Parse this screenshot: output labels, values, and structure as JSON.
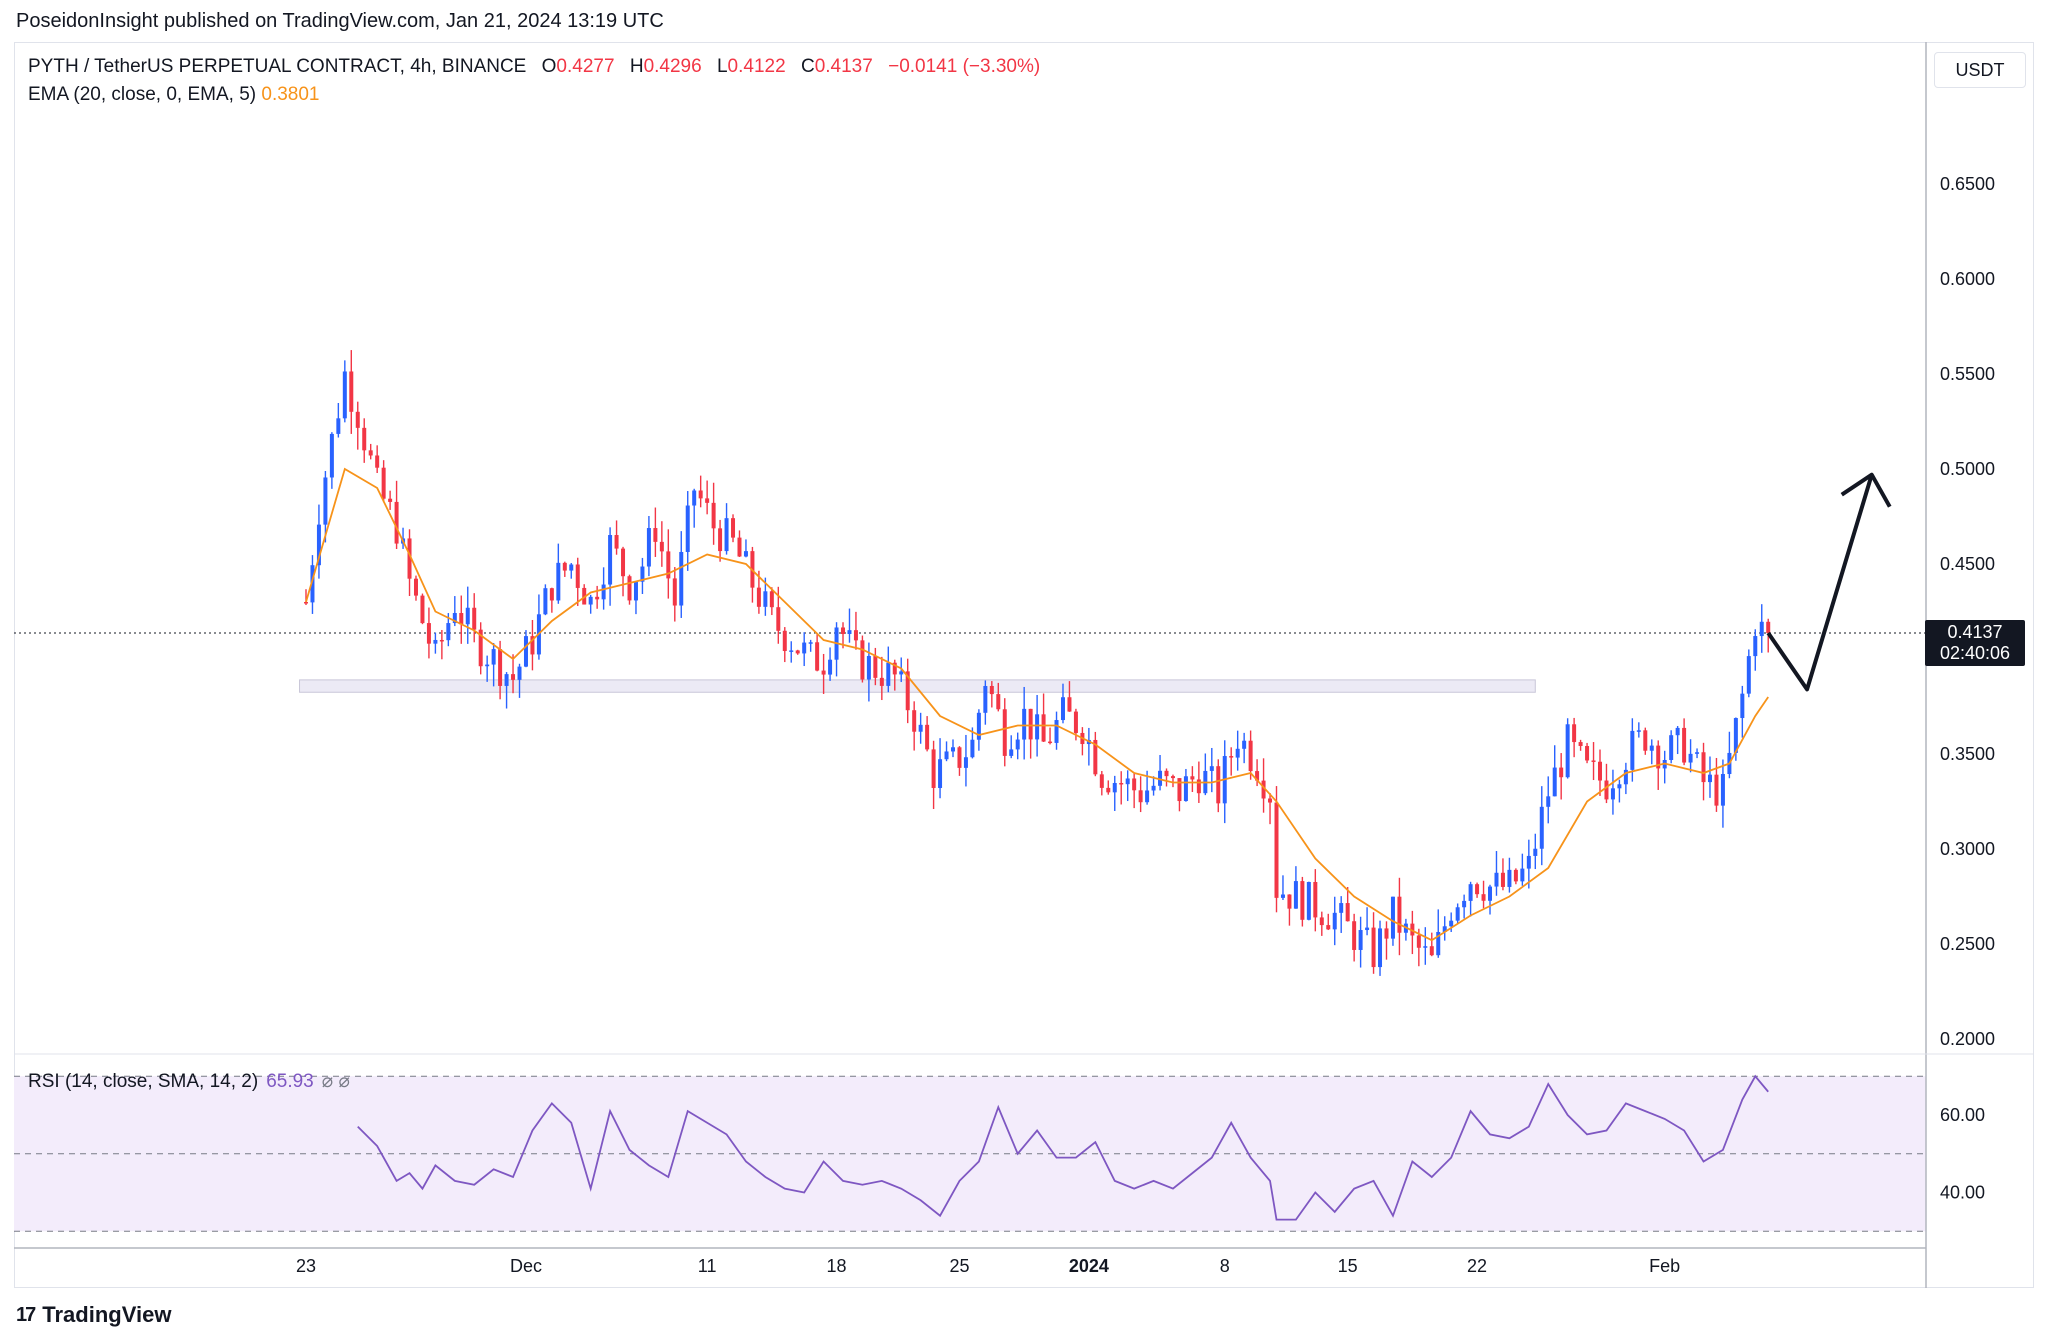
{
  "publisher": "PoseidonInsight published on TradingView.com, Jan 21, 2024 13:19 UTC",
  "header": {
    "symbol": "PYTH / TetherUS PERPETUAL CONTRACT, 4h, BINANCE",
    "open_label": "O",
    "open": "0.4277",
    "high_label": "H",
    "high": "0.4296",
    "low_label": "L",
    "low": "0.4122",
    "close_label": "C",
    "close": "0.4137",
    "change": "−0.0141 (−3.30%)",
    "ema_label": "EMA (20, close, 0, EMA, 5)",
    "ema_value": "0.3801"
  },
  "rsi": {
    "label": "RSI (14, close, SMA, 14, 2)",
    "value": "65.93",
    "icons": "⌀ ⌀"
  },
  "currency": "USDT",
  "price_badge": {
    "price": "0.4137",
    "countdown": "02:40:06"
  },
  "logo": {
    "mark": "17",
    "text": "TradingView"
  },
  "colors": {
    "up": "#2962ff",
    "down": "#f23645",
    "ema": "#f7931a",
    "rsi": "#7e57c2",
    "rsi_band": "#f3ecfb"
  },
  "chart_data": {
    "type": "candlestick",
    "timeframe": "4h",
    "ylim": [
      0.19,
      0.7
    ],
    "y_ticks": [
      "0.6500",
      "0.6000",
      "0.5500",
      "0.5000",
      "0.4500",
      "0.3500",
      "0.3000",
      "0.2500",
      "0.2000"
    ],
    "x_ticks": [
      "23",
      "Dec",
      "11",
      "18",
      "25",
      "2024",
      "8",
      "15",
      "22",
      "Feb"
    ],
    "last_price": 0.4137,
    "price_path": [
      [
        0,
        0.43
      ],
      [
        2,
        0.48
      ],
      [
        6,
        0.55
      ],
      [
        8,
        0.53
      ],
      [
        11,
        0.49
      ],
      [
        14,
        0.47
      ],
      [
        16,
        0.44
      ],
      [
        18,
        0.42
      ],
      [
        20,
        0.4
      ],
      [
        23,
        0.43
      ],
      [
        26,
        0.41
      ],
      [
        29,
        0.4
      ],
      [
        32,
        0.39
      ],
      [
        35,
        0.41
      ],
      [
        38,
        0.44
      ],
      [
        41,
        0.45
      ],
      [
        44,
        0.43
      ],
      [
        47,
        0.46
      ],
      [
        50,
        0.44
      ],
      [
        52,
        0.45
      ],
      [
        54,
        0.47
      ],
      [
        57,
        0.43
      ],
      [
        60,
        0.49
      ],
      [
        63,
        0.47
      ],
      [
        66,
        0.46
      ],
      [
        69,
        0.44
      ],
      [
        72,
        0.42
      ],
      [
        75,
        0.41
      ],
      [
        78,
        0.4
      ],
      [
        80,
        0.4
      ],
      [
        82,
        0.42
      ],
      [
        85,
        0.4
      ],
      [
        88,
        0.395
      ],
      [
        91,
        0.39
      ],
      [
        94,
        0.37
      ],
      [
        97,
        0.34
      ],
      [
        100,
        0.345
      ],
      [
        103,
        0.355
      ],
      [
        105,
        0.39
      ],
      [
        108,
        0.36
      ],
      [
        111,
        0.37
      ],
      [
        114,
        0.355
      ],
      [
        117,
        0.37
      ],
      [
        120,
        0.365
      ],
      [
        123,
        0.34
      ],
      [
        126,
        0.335
      ],
      [
        129,
        0.33
      ],
      [
        132,
        0.335
      ],
      [
        135,
        0.33
      ],
      [
        138,
        0.34
      ],
      [
        141,
        0.33
      ],
      [
        144,
        0.36
      ],
      [
        147,
        0.345
      ],
      [
        149,
        0.33
      ],
      [
        150,
        0.28
      ],
      [
        153,
        0.275
      ],
      [
        156,
        0.27
      ],
      [
        159,
        0.265
      ],
      [
        162,
        0.255
      ],
      [
        165,
        0.245
      ],
      [
        168,
        0.265
      ],
      [
        171,
        0.25
      ],
      [
        174,
        0.24
      ],
      [
        177,
        0.27
      ],
      [
        180,
        0.285
      ],
      [
        183,
        0.28
      ],
      [
        186,
        0.28
      ],
      [
        189,
        0.29
      ],
      [
        192,
        0.33
      ],
      [
        195,
        0.355
      ],
      [
        198,
        0.34
      ],
      [
        201,
        0.335
      ],
      [
        204,
        0.35
      ],
      [
        207,
        0.36
      ],
      [
        210,
        0.35
      ],
      [
        213,
        0.355
      ],
      [
        216,
        0.335
      ],
      [
        219,
        0.33
      ],
      [
        222,
        0.38
      ],
      [
        224,
        0.42
      ],
      [
        226,
        0.41
      ]
    ],
    "ema_path": [
      [
        0,
        0.43
      ],
      [
        6,
        0.5
      ],
      [
        11,
        0.49
      ],
      [
        16,
        0.455
      ],
      [
        20,
        0.425
      ],
      [
        26,
        0.415
      ],
      [
        32,
        0.4
      ],
      [
        38,
        0.42
      ],
      [
        44,
        0.435
      ],
      [
        50,
        0.44
      ],
      [
        56,
        0.445
      ],
      [
        62,
        0.455
      ],
      [
        68,
        0.45
      ],
      [
        74,
        0.43
      ],
      [
        80,
        0.41
      ],
      [
        86,
        0.405
      ],
      [
        92,
        0.395
      ],
      [
        98,
        0.37
      ],
      [
        104,
        0.36
      ],
      [
        110,
        0.365
      ],
      [
        116,
        0.365
      ],
      [
        122,
        0.355
      ],
      [
        128,
        0.34
      ],
      [
        134,
        0.335
      ],
      [
        140,
        0.335
      ],
      [
        146,
        0.34
      ],
      [
        150,
        0.325
      ],
      [
        156,
        0.295
      ],
      [
        162,
        0.275
      ],
      [
        168,
        0.262
      ],
      [
        174,
        0.252
      ],
      [
        180,
        0.265
      ],
      [
        186,
        0.275
      ],
      [
        192,
        0.29
      ],
      [
        198,
        0.325
      ],
      [
        204,
        0.34
      ],
      [
        210,
        0.345
      ],
      [
        216,
        0.34
      ],
      [
        220,
        0.345
      ],
      [
        224,
        0.37
      ],
      [
        226,
        0.38
      ]
    ],
    "support_zone": [
      0.3825,
      0.389
    ],
    "projection_arrow": [
      [
        226,
        0.4137
      ],
      [
        232,
        0.384
      ],
      [
        242,
        0.497
      ]
    ],
    "rsi": {
      "ylim": [
        25,
        85
      ],
      "band": [
        30,
        70
      ],
      "mid": 50,
      "y_ticks": [
        "60.00",
        "40.00"
      ],
      "path": [
        [
          8,
          57
        ],
        [
          11,
          52
        ],
        [
          14,
          43
        ],
        [
          16,
          45
        ],
        [
          18,
          41
        ],
        [
          20,
          47
        ],
        [
          23,
          43
        ],
        [
          26,
          42
        ],
        [
          29,
          46
        ],
        [
          32,
          44
        ],
        [
          35,
          56
        ],
        [
          38,
          63
        ],
        [
          41,
          58
        ],
        [
          44,
          41
        ],
        [
          47,
          61
        ],
        [
          50,
          51
        ],
        [
          53,
          47
        ],
        [
          56,
          44
        ],
        [
          59,
          61
        ],
        [
          62,
          58
        ],
        [
          65,
          55
        ],
        [
          68,
          48
        ],
        [
          71,
          44
        ],
        [
          74,
          41
        ],
        [
          77,
          40
        ],
        [
          80,
          48
        ],
        [
          83,
          43
        ],
        [
          86,
          42
        ],
        [
          89,
          43
        ],
        [
          92,
          41
        ],
        [
          95,
          38
        ],
        [
          98,
          34
        ],
        [
          101,
          43
        ],
        [
          104,
          48
        ],
        [
          107,
          62
        ],
        [
          110,
          50
        ],
        [
          113,
          56
        ],
        [
          116,
          49
        ],
        [
          119,
          49
        ],
        [
          122,
          53
        ],
        [
          125,
          43
        ],
        [
          128,
          41
        ],
        [
          131,
          43
        ],
        [
          134,
          41
        ],
        [
          137,
          45
        ],
        [
          140,
          49
        ],
        [
          143,
          58
        ],
        [
          146,
          49
        ],
        [
          149,
          43
        ],
        [
          150,
          33
        ],
        [
          153,
          33
        ],
        [
          156,
          40
        ],
        [
          159,
          35
        ],
        [
          162,
          41
        ],
        [
          165,
          43
        ],
        [
          168,
          34
        ],
        [
          171,
          48
        ],
        [
          174,
          44
        ],
        [
          177,
          49
        ],
        [
          180,
          61
        ],
        [
          183,
          55
        ],
        [
          186,
          54
        ],
        [
          189,
          57
        ],
        [
          192,
          68
        ],
        [
          195,
          60
        ],
        [
          198,
          55
        ],
        [
          201,
          56
        ],
        [
          204,
          63
        ],
        [
          207,
          61
        ],
        [
          210,
          59
        ],
        [
          213,
          56
        ],
        [
          216,
          48
        ],
        [
          219,
          51
        ],
        [
          222,
          64
        ],
        [
          224,
          70
        ],
        [
          226,
          66
        ]
      ]
    }
  }
}
